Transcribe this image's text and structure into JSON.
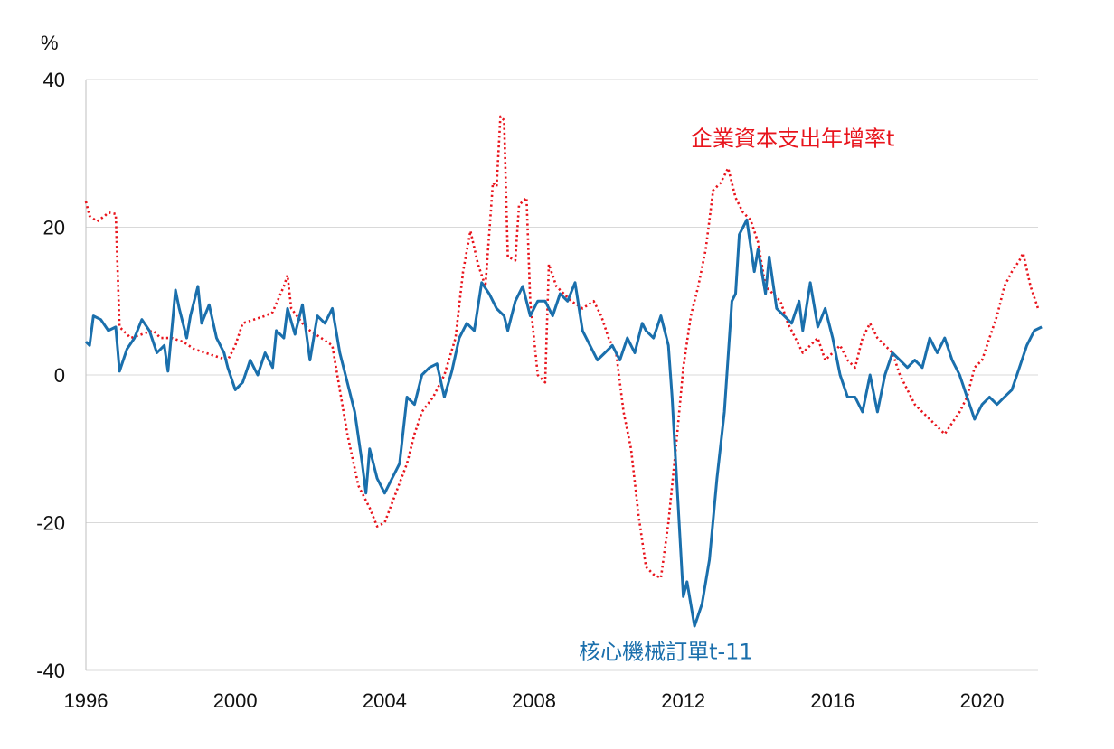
{
  "chart_data": {
    "type": "line",
    "y_unit": "%",
    "ylim": [
      -40,
      40
    ],
    "xlim": [
      1996,
      2021.5
    ],
    "y_ticks": [
      {
        "value": 40,
        "label": "40"
      },
      {
        "value": 20,
        "label": "20"
      },
      {
        "value": 0,
        "label": "0"
      },
      {
        "value": -20,
        "label": "-20"
      },
      {
        "value": -40,
        "label": "-40"
      }
    ],
    "x_ticks": [
      {
        "value": 1996,
        "label": "1996"
      },
      {
        "value": 2000,
        "label": "2000"
      },
      {
        "value": 2004,
        "label": "2004"
      },
      {
        "value": 2008,
        "label": "2008"
      },
      {
        "value": 2012,
        "label": "2012"
      },
      {
        "value": 2016,
        "label": "2016"
      },
      {
        "value": 2020,
        "label": "2020"
      }
    ],
    "grid": {
      "horizontal": true,
      "vertical": false
    },
    "series": [
      {
        "name": "企業資本支出年增率t",
        "color": "#e8141c",
        "style": "dotted",
        "label_anchor": {
          "x": 2012.2,
          "y": 31
        },
        "points": [
          [
            1996.0,
            23.5
          ],
          [
            1996.1,
            21.5
          ],
          [
            1996.3,
            20.8
          ],
          [
            1996.5,
            21.5
          ],
          [
            1996.6,
            22
          ],
          [
            1996.8,
            21.8
          ],
          [
            1996.9,
            6.5
          ],
          [
            1997.2,
            5
          ],
          [
            1997.5,
            5.5
          ],
          [
            1997.8,
            6
          ],
          [
            1998.0,
            5
          ],
          [
            1998.3,
            5
          ],
          [
            1998.6,
            4.5
          ],
          [
            1998.9,
            3.5
          ],
          [
            1999.2,
            3
          ],
          [
            1999.5,
            2.5
          ],
          [
            1999.8,
            2
          ],
          [
            2000.0,
            4
          ],
          [
            2000.2,
            7
          ],
          [
            2000.5,
            7.5
          ],
          [
            2000.8,
            8
          ],
          [
            2001.0,
            8.5
          ],
          [
            2001.3,
            12
          ],
          [
            2001.4,
            13.5
          ],
          [
            2001.5,
            9
          ],
          [
            2001.8,
            7
          ],
          [
            2002.0,
            6
          ],
          [
            2002.3,
            5
          ],
          [
            2002.6,
            4
          ],
          [
            2002.8,
            -2
          ],
          [
            2003.0,
            -8
          ],
          [
            2003.3,
            -15
          ],
          [
            2003.6,
            -18
          ],
          [
            2003.8,
            -20.5
          ],
          [
            2004.0,
            -20
          ],
          [
            2004.3,
            -16
          ],
          [
            2004.6,
            -12
          ],
          [
            2004.8,
            -8
          ],
          [
            2005.0,
            -5
          ],
          [
            2005.3,
            -3
          ],
          [
            2005.6,
            0
          ],
          [
            2005.9,
            5
          ],
          [
            2006.1,
            14
          ],
          [
            2006.3,
            19.5
          ],
          [
            2006.5,
            15
          ],
          [
            2006.7,
            12
          ],
          [
            2006.9,
            26
          ],
          [
            2007.0,
            25.5
          ],
          [
            2007.1,
            35
          ],
          [
            2007.2,
            34.5
          ],
          [
            2007.3,
            16
          ],
          [
            2007.5,
            15.5
          ],
          [
            2007.6,
            23
          ],
          [
            2007.8,
            24
          ],
          [
            2007.9,
            10
          ],
          [
            2008.1,
            0
          ],
          [
            2008.3,
            -1
          ],
          [
            2008.4,
            15
          ],
          [
            2008.6,
            12
          ],
          [
            2008.8,
            11
          ],
          [
            2009.0,
            10
          ],
          [
            2009.3,
            9
          ],
          [
            2009.6,
            10
          ],
          [
            2009.8,
            8
          ],
          [
            2010.0,
            5
          ],
          [
            2010.2,
            3
          ],
          [
            2010.4,
            -5
          ],
          [
            2010.6,
            -10
          ],
          [
            2010.8,
            -19
          ],
          [
            2011.0,
            -26
          ],
          [
            2011.2,
            -27
          ],
          [
            2011.4,
            -27.5
          ],
          [
            2011.6,
            -20
          ],
          [
            2011.8,
            -10
          ],
          [
            2012.0,
            1
          ],
          [
            2012.2,
            8
          ],
          [
            2012.4,
            12
          ],
          [
            2012.6,
            17
          ],
          [
            2012.8,
            25
          ],
          [
            2013.0,
            26
          ],
          [
            2013.2,
            28
          ],
          [
            2013.4,
            24
          ],
          [
            2013.6,
            22
          ],
          [
            2013.8,
            21
          ],
          [
            2014.0,
            18
          ],
          [
            2014.2,
            12
          ],
          [
            2014.4,
            11
          ],
          [
            2014.6,
            10
          ],
          [
            2014.8,
            7
          ],
          [
            2015.0,
            5
          ],
          [
            2015.2,
            3
          ],
          [
            2015.4,
            4
          ],
          [
            2015.6,
            5
          ],
          [
            2015.8,
            2
          ],
          [
            2016.0,
            3
          ],
          [
            2016.2,
            4
          ],
          [
            2016.4,
            2
          ],
          [
            2016.6,
            1
          ],
          [
            2016.8,
            5
          ],
          [
            2017.0,
            7
          ],
          [
            2017.2,
            5
          ],
          [
            2017.4,
            4
          ],
          [
            2017.6,
            3
          ],
          [
            2017.8,
            0
          ],
          [
            2018.0,
            -2
          ],
          [
            2018.2,
            -4
          ],
          [
            2018.4,
            -5
          ],
          [
            2018.6,
            -6
          ],
          [
            2018.8,
            -7
          ],
          [
            2019.0,
            -8
          ],
          [
            2019.2,
            -6.5
          ],
          [
            2019.4,
            -5
          ],
          [
            2019.6,
            -3
          ],
          [
            2019.8,
            1
          ],
          [
            2020.0,
            2
          ],
          [
            2020.2,
            5
          ],
          [
            2020.4,
            8
          ],
          [
            2020.6,
            12
          ],
          [
            2020.8,
            14
          ],
          [
            2021.0,
            15.5
          ],
          [
            2021.1,
            16.5
          ],
          [
            2021.3,
            12
          ],
          [
            2021.5,
            9
          ]
        ]
      },
      {
        "name": "核心機械訂單t-11",
        "color": "#1a6fac",
        "style": "solid",
        "label_anchor": {
          "x": 2009.2,
          "y": -38.5
        },
        "points": [
          [
            1996.0,
            4.5
          ],
          [
            1996.1,
            4
          ],
          [
            1996.2,
            8
          ],
          [
            1996.4,
            7.5
          ],
          [
            1996.6,
            6
          ],
          [
            1996.8,
            6.5
          ],
          [
            1996.9,
            0.5
          ],
          [
            1997.1,
            3.5
          ],
          [
            1997.3,
            5
          ],
          [
            1997.5,
            7.5
          ],
          [
            1997.7,
            6
          ],
          [
            1997.9,
            3
          ],
          [
            1998.1,
            4
          ],
          [
            1998.2,
            0.5
          ],
          [
            1998.4,
            11.5
          ],
          [
            1998.5,
            9
          ],
          [
            1998.7,
            5
          ],
          [
            1998.8,
            8
          ],
          [
            1999.0,
            12
          ],
          [
            1999.1,
            7
          ],
          [
            1999.3,
            9.5
          ],
          [
            1999.5,
            5
          ],
          [
            1999.7,
            3
          ],
          [
            1999.8,
            1
          ],
          [
            2000.0,
            -2
          ],
          [
            2000.2,
            -1
          ],
          [
            2000.4,
            2
          ],
          [
            2000.6,
            0
          ],
          [
            2000.8,
            3
          ],
          [
            2001.0,
            1
          ],
          [
            2001.1,
            6
          ],
          [
            2001.3,
            5
          ],
          [
            2001.4,
            9
          ],
          [
            2001.6,
            5.5
          ],
          [
            2001.8,
            9.5
          ],
          [
            2002.0,
            2
          ],
          [
            2002.2,
            8
          ],
          [
            2002.4,
            7
          ],
          [
            2002.6,
            9
          ],
          [
            2002.8,
            3
          ],
          [
            2003.0,
            -1
          ],
          [
            2003.2,
            -5
          ],
          [
            2003.4,
            -12
          ],
          [
            2003.5,
            -16
          ],
          [
            2003.6,
            -10
          ],
          [
            2003.8,
            -14
          ],
          [
            2004.0,
            -16
          ],
          [
            2004.2,
            -14
          ],
          [
            2004.4,
            -12
          ],
          [
            2004.6,
            -3
          ],
          [
            2004.8,
            -4
          ],
          [
            2005.0,
            0
          ],
          [
            2005.2,
            1
          ],
          [
            2005.4,
            1.5
          ],
          [
            2005.6,
            -3
          ],
          [
            2005.8,
            0.5
          ],
          [
            2006.0,
            5
          ],
          [
            2006.2,
            7
          ],
          [
            2006.4,
            6
          ],
          [
            2006.6,
            12.5
          ],
          [
            2006.8,
            11
          ],
          [
            2007.0,
            9
          ],
          [
            2007.2,
            8
          ],
          [
            2007.3,
            6
          ],
          [
            2007.5,
            10
          ],
          [
            2007.7,
            12
          ],
          [
            2007.9,
            8
          ],
          [
            2008.1,
            10
          ],
          [
            2008.3,
            10
          ],
          [
            2008.5,
            8
          ],
          [
            2008.7,
            11
          ],
          [
            2008.9,
            10
          ],
          [
            2009.1,
            12.5
          ],
          [
            2009.3,
            6
          ],
          [
            2009.5,
            4
          ],
          [
            2009.7,
            2
          ],
          [
            2009.9,
            3
          ],
          [
            2010.1,
            4
          ],
          [
            2010.3,
            2
          ],
          [
            2010.5,
            5
          ],
          [
            2010.7,
            3
          ],
          [
            2010.9,
            7
          ],
          [
            2011.0,
            6
          ],
          [
            2011.2,
            5
          ],
          [
            2011.4,
            8
          ],
          [
            2011.6,
            4
          ],
          [
            2011.7,
            -3
          ],
          [
            2011.8,
            -12
          ],
          [
            2012.0,
            -30
          ],
          [
            2012.1,
            -28
          ],
          [
            2012.3,
            -34
          ],
          [
            2012.5,
            -31
          ],
          [
            2012.7,
            -25
          ],
          [
            2012.9,
            -14
          ],
          [
            2013.1,
            -5
          ],
          [
            2013.3,
            10
          ],
          [
            2013.4,
            11
          ],
          [
            2013.5,
            19
          ],
          [
            2013.7,
            21
          ],
          [
            2013.9,
            14
          ],
          [
            2014.0,
            17
          ],
          [
            2014.2,
            11
          ],
          [
            2014.3,
            16
          ],
          [
            2014.5,
            9
          ],
          [
            2014.7,
            8
          ],
          [
            2014.9,
            7
          ],
          [
            2015.1,
            10
          ],
          [
            2015.2,
            6
          ],
          [
            2015.4,
            12.5
          ],
          [
            2015.6,
            6.5
          ],
          [
            2015.8,
            9
          ],
          [
            2016.0,
            5
          ],
          [
            2016.2,
            0
          ],
          [
            2016.4,
            -3
          ],
          [
            2016.6,
            -3
          ],
          [
            2016.8,
            -5
          ],
          [
            2017.0,
            0
          ],
          [
            2017.2,
            -5
          ],
          [
            2017.4,
            0
          ],
          [
            2017.6,
            3
          ],
          [
            2017.8,
            2
          ],
          [
            2018.0,
            1
          ],
          [
            2018.2,
            2
          ],
          [
            2018.4,
            1
          ],
          [
            2018.6,
            5
          ],
          [
            2018.8,
            3
          ],
          [
            2019.0,
            5
          ],
          [
            2019.2,
            2
          ],
          [
            2019.4,
            0
          ],
          [
            2019.6,
            -3
          ],
          [
            2019.8,
            -6
          ],
          [
            2020.0,
            -4
          ],
          [
            2020.2,
            -3
          ],
          [
            2020.4,
            -4
          ],
          [
            2020.6,
            -3
          ],
          [
            2020.8,
            -2
          ],
          [
            2021.0,
            1
          ],
          [
            2021.2,
            4
          ],
          [
            2021.4,
            6
          ],
          [
            2021.6,
            6.5
          ]
        ]
      }
    ]
  }
}
